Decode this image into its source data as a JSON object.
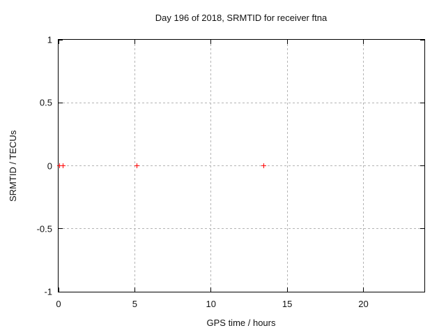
{
  "chart_data": {
    "type": "scatter",
    "title": "Day 196 of 2018, SRMTID for receiver ftna",
    "xlabel": "GPS time / hours",
    "ylabel": "SRMTID / TECUs",
    "xlim": [
      0,
      24
    ],
    "ylim": [
      -1,
      1
    ],
    "xticks": [
      0,
      5,
      10,
      15,
      20
    ],
    "yticks": [
      -1,
      -0.5,
      0,
      0.5,
      1
    ],
    "grid": true,
    "legend": false,
    "marker": "plus",
    "marker_color": "#ff0000",
    "grid_color": "#b4b4b4",
    "border_color": "#000000",
    "points": [
      {
        "x": 0.05,
        "y": 0
      },
      {
        "x": 0.3,
        "y": 0
      },
      {
        "x": 5.15,
        "y": 0
      },
      {
        "x": 13.45,
        "y": 0
      }
    ]
  }
}
